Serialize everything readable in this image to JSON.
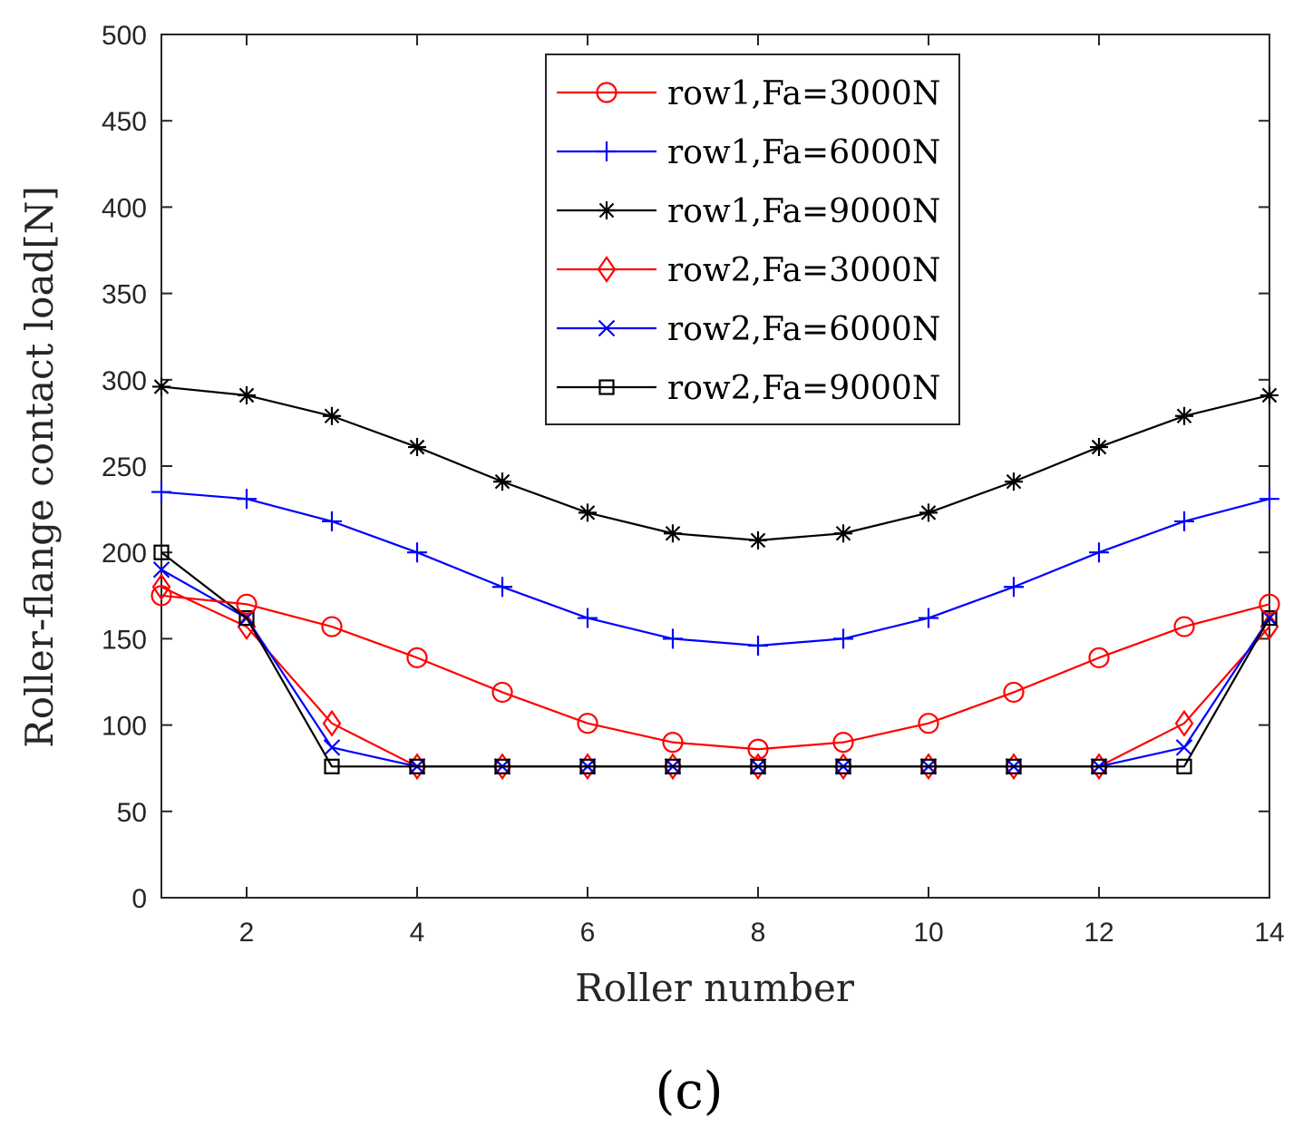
{
  "chart_data": {
    "type": "line",
    "title": "",
    "xlabel": "Roller number",
    "ylabel": "Roller-flange contact load[N]",
    "panel_label": "(c)",
    "xlim": [
      1,
      14
    ],
    "ylim": [
      0,
      500
    ],
    "xticks": [
      2,
      4,
      6,
      8,
      10,
      12,
      14
    ],
    "yticks": [
      0,
      50,
      100,
      150,
      200,
      250,
      300,
      350,
      400,
      450,
      500
    ],
    "grid": false,
    "legend_position": "top-center",
    "x": [
      1,
      2,
      3,
      4,
      5,
      6,
      7,
      8,
      9,
      10,
      11,
      12,
      13,
      14
    ],
    "series": [
      {
        "name": "row1,Fa=3000N",
        "color": "#ff0000",
        "marker": "circle",
        "values": [
          175,
          170,
          157,
          139,
          119,
          101,
          90,
          86,
          90,
          101,
          119,
          139,
          157,
          170
        ]
      },
      {
        "name": "row1,Fa=6000N",
        "color": "#0000ff",
        "marker": "plus",
        "values": [
          235,
          231,
          218,
          200,
          180,
          162,
          150,
          146,
          150,
          162,
          180,
          200,
          218,
          231
        ]
      },
      {
        "name": "row1,Fa=9000N",
        "color": "#000000",
        "marker": "asterisk",
        "values": [
          296,
          291,
          279,
          261,
          241,
          223,
          211,
          207,
          211,
          223,
          241,
          261,
          279,
          291
        ]
      },
      {
        "name": "row2,Fa=3000N",
        "color": "#ff0000",
        "marker": "diamond",
        "values": [
          180,
          157,
          101,
          76,
          76,
          76,
          76,
          76,
          76,
          76,
          76,
          76,
          101,
          157
        ]
      },
      {
        "name": "row2,Fa=6000N",
        "color": "#0000ff",
        "marker": "x",
        "values": [
          190,
          162,
          87,
          76,
          76,
          76,
          76,
          76,
          76,
          76,
          76,
          76,
          87,
          162
        ]
      },
      {
        "name": "row2,Fa=9000N",
        "color": "#000000",
        "marker": "square",
        "values": [
          200,
          162,
          76,
          76,
          76,
          76,
          76,
          76,
          76,
          76,
          76,
          76,
          76,
          162
        ]
      }
    ]
  }
}
